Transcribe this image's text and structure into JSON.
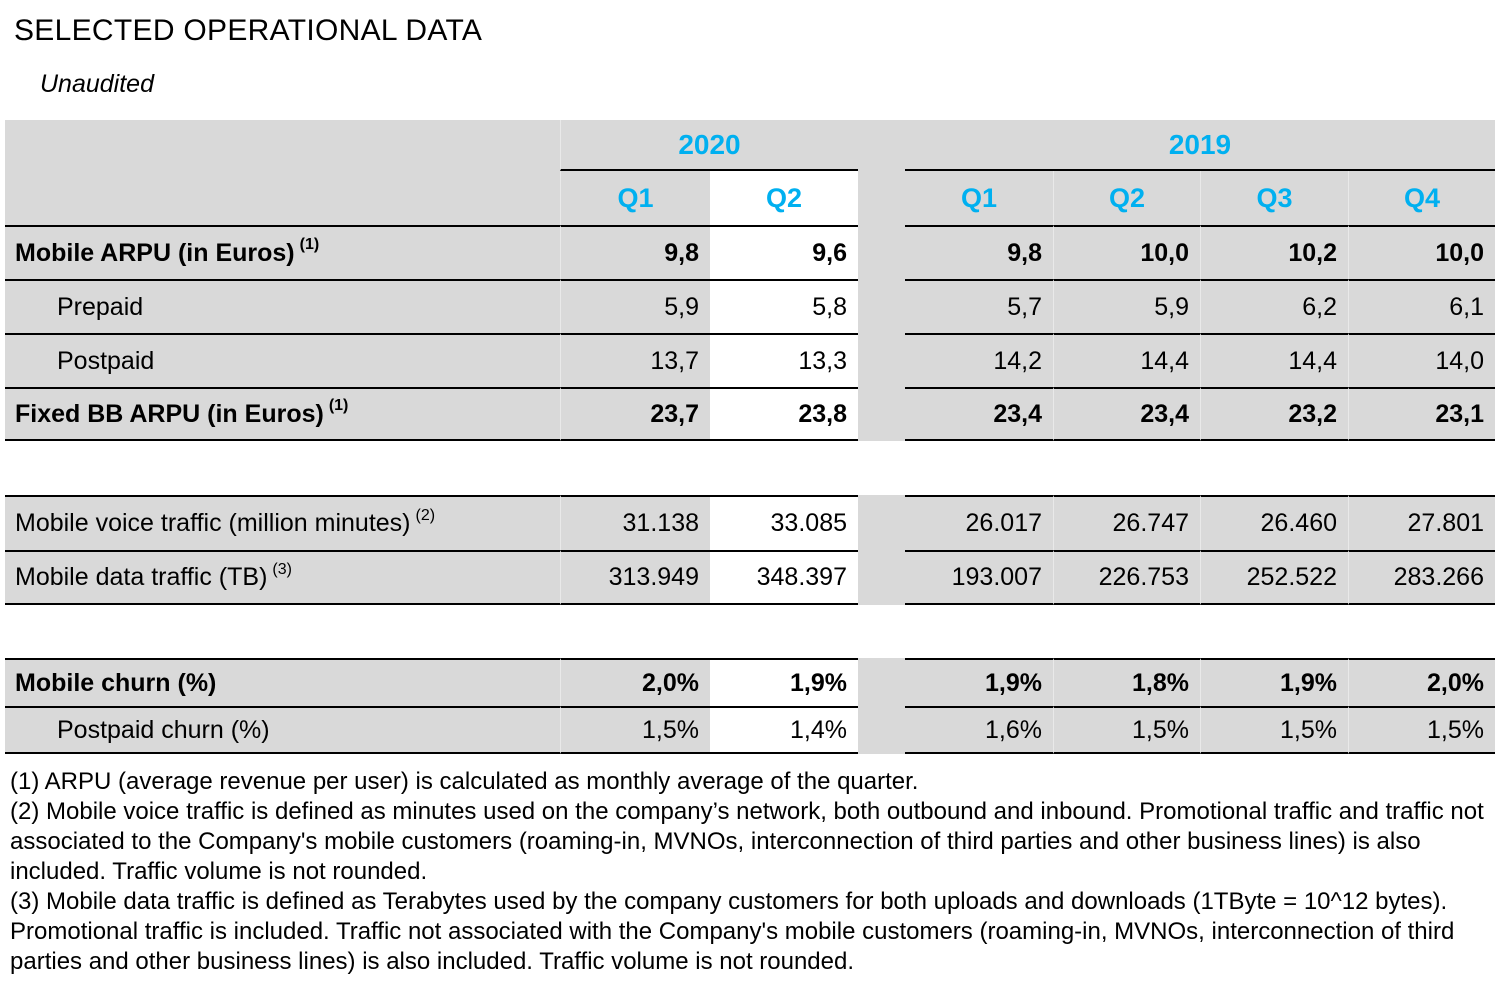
{
  "page": {
    "title": "SELECTED OPERATIONAL DATA",
    "subtitle": "Unaudited"
  },
  "table": {
    "year_groups": [
      {
        "label": "2020",
        "quarters": [
          "Q1",
          "Q2"
        ]
      },
      {
        "label": "2019",
        "quarters": [
          "Q1",
          "Q2",
          "Q3",
          "Q4"
        ]
      }
    ],
    "highlighted_column": "2020 Q2",
    "rows": [
      {
        "label": "Mobile ARPU (in Euros)",
        "sup": "(1)",
        "values": [
          "9,8",
          "9,6",
          "9,8",
          "10,0",
          "10,2",
          "10,0"
        ]
      },
      {
        "label": "Prepaid",
        "sup": "",
        "values": [
          "5,9",
          "5,8",
          "5,7",
          "5,9",
          "6,2",
          "6,1"
        ]
      },
      {
        "label": "Postpaid",
        "sup": "",
        "values": [
          "13,7",
          "13,3",
          "14,2",
          "14,4",
          "14,4",
          "14,0"
        ]
      },
      {
        "label": "Fixed BB ARPU (in Euros)",
        "sup": "(1)",
        "values": [
          "23,7",
          "23,8",
          "23,4",
          "23,4",
          "23,2",
          "23,1"
        ]
      },
      {
        "label": "Mobile voice traffic (million minutes)",
        "sup": "(2)",
        "values": [
          "31.138",
          "33.085",
          "26.017",
          "26.747",
          "26.460",
          "27.801"
        ]
      },
      {
        "label": "Mobile data traffic (TB)",
        "sup": "(3)",
        "values": [
          "313.949",
          "348.397",
          "193.007",
          "226.753",
          "252.522",
          "283.266"
        ]
      },
      {
        "label": "Mobile churn (%)",
        "sup": "",
        "values": [
          "2,0%",
          "1,9%",
          "1,9%",
          "1,8%",
          "1,9%",
          "2,0%"
        ]
      },
      {
        "label": "Postpaid churn (%)",
        "sup": "",
        "values": [
          "1,5%",
          "1,4%",
          "1,6%",
          "1,5%",
          "1,5%",
          "1,5%"
        ]
      }
    ]
  },
  "footnotes": [
    "(1) ARPU (average revenue per user) is calculated as monthly average of the quarter.",
    "(2) Mobile voice traffic is defined as minutes used on the company’s network, both outbound and inbound. Promotional traffic and traffic not associated to the Company's mobile customers (roaming-in, MVNOs, interconnection of third parties and other business lines) is also included. Traffic volume is not rounded.",
    "(3) Mobile data traffic is defined as Terabytes used by the company customers for both uploads and downloads (1TByte = 10^12 bytes). Promotional traffic is included. Traffic not associated with the Company's mobile customers (roaming-in, MVNOs, interconnection of third parties and other business lines) is also included. Traffic volume is not rounded."
  ],
  "colors": {
    "accent_blue": "#00B0F0",
    "row_gray": "#D9D9D9",
    "highlight_white": "#FFFFFF",
    "border": "#000000"
  }
}
